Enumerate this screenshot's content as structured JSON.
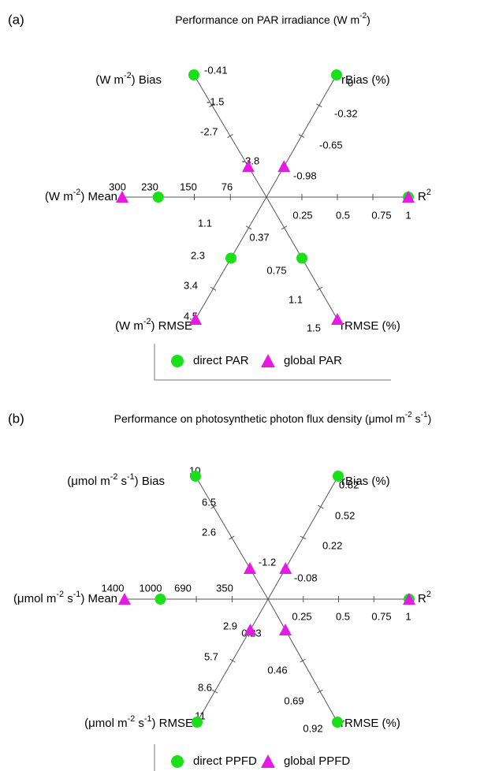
{
  "chart_data": [
    {
      "type": "radar",
      "panel_label": "(a)",
      "title": "Performance on PAR irradiance (W m⁻²)",
      "axes": [
        {
          "key": "bias",
          "label": "(W m⁻²) Bias",
          "direction": "upper-left",
          "ticks": [
            "-0.41",
            "-1.5",
            "-2.7",
            "-3.8"
          ]
        },
        {
          "key": "rbias",
          "label": "rBias (%)",
          "direction": "upper-right",
          "ticks": [
            "0",
            "-0.32",
            "-0.65",
            "-0.98"
          ]
        },
        {
          "key": "r2",
          "label": "R²",
          "direction": "right",
          "ticks": [
            "0.25",
            "0.5",
            "0.75",
            "1"
          ]
        },
        {
          "key": "rrmse",
          "label": "rRMSE (%)",
          "direction": "lower-right",
          "ticks": [
            "0.37",
            "0.75",
            "1.1",
            "1.5"
          ]
        },
        {
          "key": "rmse",
          "label": "(W m⁻²) RMSE",
          "direction": "lower-left",
          "ticks": [
            "1.1",
            "2.3",
            "3.4",
            "4.5"
          ]
        },
        {
          "key": "mean",
          "label": "(W m⁻²) Mean",
          "direction": "left",
          "ticks": [
            "76",
            "150",
            "230",
            "300"
          ]
        }
      ],
      "series": [
        {
          "name": "direct PAR",
          "marker": "circle",
          "color": "#19e019",
          "values": {
            "bias": -0.41,
            "rbias": 0,
            "r2": 1,
            "rrmse": 0.75,
            "rmse": 2.3,
            "mean": 230
          }
        },
        {
          "name": "global PAR",
          "marker": "triangle",
          "color": "#e619e6",
          "values": {
            "bias": -3.8,
            "rbias": -0.98,
            "r2": 1,
            "rrmse": 1.5,
            "rmse": 4.5,
            "mean": 300
          }
        }
      ]
    },
    {
      "type": "radar",
      "panel_label": "(b)",
      "title": "Performance on photosynthetic photon flux density (μmol m⁻² s⁻¹)",
      "axes": [
        {
          "key": "bias",
          "label": "(μmol m⁻² s⁻¹) Bias",
          "direction": "upper-left",
          "ticks": [
            "10",
            "6.5",
            "2.6",
            "-1.2"
          ]
        },
        {
          "key": "rbias",
          "label": "rBias (%)",
          "direction": "upper-right",
          "ticks": [
            "0.82",
            "0.52",
            "0.22",
            "-0.08"
          ]
        },
        {
          "key": "r2",
          "label": "R²",
          "direction": "right",
          "ticks": [
            "0.25",
            "0.5",
            "0.75",
            "1"
          ]
        },
        {
          "key": "rrmse",
          "label": "rRMSE (%)",
          "direction": "lower-right",
          "ticks": [
            "0.23",
            "0.46",
            "0.69",
            "0.92"
          ]
        },
        {
          "key": "rmse",
          "label": "(μmol m⁻² s⁻¹) RMSE",
          "direction": "lower-left",
          "ticks": [
            "2.9",
            "5.7",
            "8.6",
            "11"
          ]
        },
        {
          "key": "mean",
          "label": "(μmol m⁻² s⁻¹) Mean",
          "direction": "left",
          "ticks": [
            "350",
            "690",
            "1000",
            "1400"
          ]
        }
      ],
      "series": [
        {
          "name": "direct PPFD",
          "marker": "circle",
          "color": "#19e019",
          "values": {
            "bias": 10,
            "rbias": 0.82,
            "r2": 1,
            "rrmse": 0.92,
            "rmse": 11,
            "mean": 1000
          }
        },
        {
          "name": "global PPFD",
          "marker": "triangle",
          "color": "#e619e6",
          "values": {
            "bias": -1.2,
            "rbias": -0.08,
            "r2": 1,
            "rrmse": 0.23,
            "rmse": 2.9,
            "mean": 1400
          }
        }
      ]
    }
  ]
}
